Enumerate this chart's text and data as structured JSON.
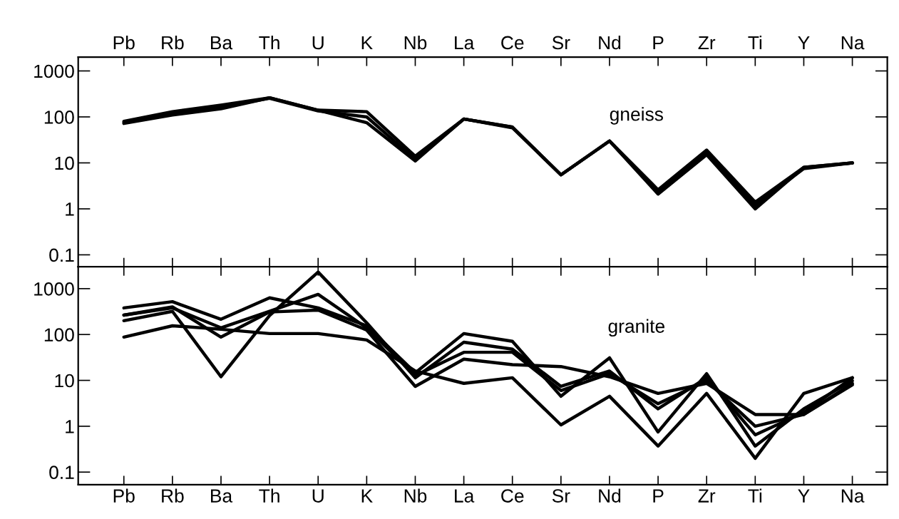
{
  "chart_data": [
    {
      "type": "line",
      "categories": [
        "Pb",
        "Rb",
        "Ba",
        "Th",
        "U",
        "K",
        "Nb",
        "La",
        "Ce",
        "Sr",
        "Nd",
        "P",
        "Zr",
        "Ti",
        "Y",
        "Na"
      ],
      "log": true,
      "ylim": [
        0.055,
        2000
      ],
      "yticks": [
        0.1,
        1,
        10,
        100,
        1000
      ],
      "grid": false,
      "marker": "none",
      "line_style": "solid",
      "annotations": [
        "gneiss"
      ],
      "series": [
        {
          "color": "#000000",
          "values": [
            80,
            130,
            180,
            260,
            140,
            130,
            14,
            90,
            60,
            5.5,
            30,
            2.6,
            19,
            1.4,
            8,
            10
          ]
        },
        {
          "color": "#000000",
          "values": [
            72,
            110,
            150,
            260,
            140,
            75,
            11,
            90,
            60,
            5.5,
            30,
            2.1,
            15,
            1.0,
            8,
            10
          ]
        },
        {
          "color": "#000000",
          "values": [
            75,
            120,
            165,
            255,
            135,
            100,
            12,
            90,
            58,
            5.5,
            30,
            2.3,
            17,
            1.2,
            7.5,
            10
          ]
        }
      ]
    },
    {
      "type": "line",
      "categories": [
        "Pb",
        "Rb",
        "Ba",
        "Th",
        "U",
        "K",
        "Nb",
        "La",
        "Ce",
        "Sr",
        "Nd",
        "P",
        "Zr",
        "Ti",
        "Y",
        "Na"
      ],
      "log": true,
      "ylim": [
        0.053,
        3000
      ],
      "yticks": [
        0.1,
        1,
        10,
        100,
        1000
      ],
      "grid": false,
      "marker": "none",
      "line_style": "solid",
      "annotations": [
        "granite"
      ],
      "series": [
        {
          "color": "#000000",
          "values": [
            200,
            320,
            12,
            260,
            2300,
            180,
            11.4,
            68,
            48,
            7.4,
            16,
            2.4,
            11.4,
            0.65,
            2.0,
            11.4
          ]
        },
        {
          "color": "#000000",
          "values": [
            380,
            520,
            215,
            630,
            380,
            155,
            14.6,
            105,
            71,
            4.5,
            31,
            0.75,
            14,
            0.37,
            2.4,
            9.8
          ]
        },
        {
          "color": "#000000",
          "values": [
            265,
            380,
            140,
            320,
            750,
            140,
            12.7,
            41,
            41,
            6,
            14,
            3.1,
            9.8,
            1.0,
            1.8,
            8.6
          ]
        },
        {
          "color": "#000000",
          "values": [
            88,
            155,
            130,
            105,
            105,
            76,
            16,
            8.6,
            11.4,
            1.07,
            4.5,
            0.37,
            5.2,
            0.2,
            5.2,
            11.4
          ]
        },
        {
          "color": "#000000",
          "values": [
            265,
            400,
            88,
            310,
            340,
            125,
            7.4,
            29,
            22,
            20,
            12,
            5.2,
            8.6,
            1.8,
            1.8,
            8
          ]
        }
      ]
    }
  ]
}
